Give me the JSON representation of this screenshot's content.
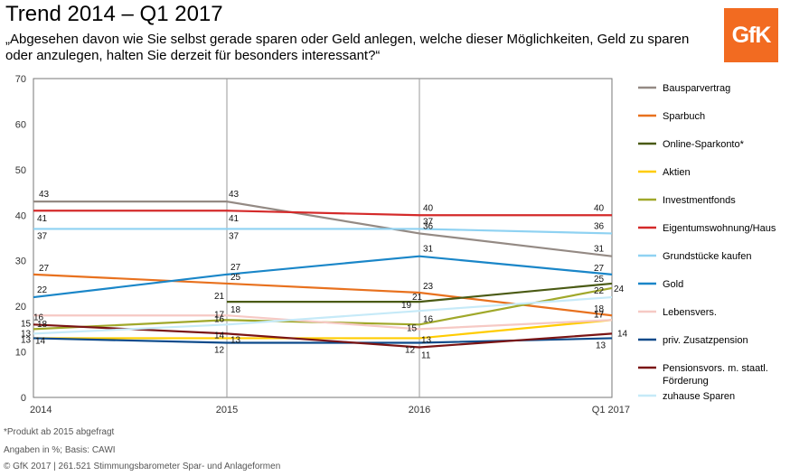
{
  "header": {
    "title": "Trend 2014 – Q1 2017",
    "subtitle": "„Abgesehen davon wie Sie selbst gerade sparen oder Geld anlegen, welche dieser Möglichkeiten, Geld zu sparen oder anzulegen, halten Sie derzeit für besonders interessant?“",
    "logo_text": "GfK"
  },
  "footer": {
    "footnote": "*Produkt ab 2015 abgefragt",
    "source": "Angaben in %; Basis: CAWI",
    "copyright": "© GfK 2017 | 261.521 Stimmungsbarometer Spar- und Anlageformen"
  },
  "chart_data": {
    "type": "line",
    "categories": [
      "2014",
      "2015",
      "2016",
      "Q1 2017"
    ],
    "ylim": [
      0,
      70
    ],
    "yticks": [
      0,
      10,
      20,
      30,
      40,
      50,
      60,
      70
    ],
    "grid": "vertical lines at category positions",
    "legend_position": "right",
    "series": [
      {
        "name": "Bausparvertrag",
        "color": "#948a84",
        "values": [
          43,
          43,
          36,
          31
        ],
        "labels": [
          "43",
          "43",
          "36",
          "31"
        ]
      },
      {
        "name": "Sparbuch",
        "color": "#e8711e",
        "values": [
          27,
          25,
          23,
          18
        ],
        "labels": [
          "27",
          "25",
          "23",
          "18"
        ]
      },
      {
        "name": "Online-Sparkonto*",
        "color": "#4a5a14",
        "values": [
          null,
          21,
          21,
          25
        ],
        "labels": [
          null,
          "21",
          "21",
          "25"
        ]
      },
      {
        "name": "Aktien",
        "color": "#ffcc00",
        "values": [
          13,
          13,
          13,
          17
        ],
        "labels": [
          "13",
          "13",
          "13",
          "17"
        ]
      },
      {
        "name": "Investmentfonds",
        "color": "#a0a82a",
        "values": [
          15,
          17,
          16,
          24
        ],
        "labels": [
          "15",
          "17",
          "16",
          "24"
        ]
      },
      {
        "name": "Eigentumswohnung/Haus",
        "color": "#d42a2a",
        "values": [
          41,
          41,
          40,
          40
        ],
        "labels": [
          "41",
          "41",
          "40",
          "40"
        ]
      },
      {
        "name": "Grundstücke kaufen",
        "color": "#8fd2f2",
        "values": [
          37,
          37,
          37,
          36
        ],
        "labels": [
          "37",
          "37",
          "37",
          "36"
        ]
      },
      {
        "name": "Gold",
        "color": "#1a86c8",
        "values": [
          22,
          27,
          31,
          27
        ],
        "labels": [
          "22",
          "27",
          "31",
          "27"
        ]
      },
      {
        "name": "Lebensvers.",
        "color": "#f6c9c4",
        "values": [
          18,
          18,
          15,
          17
        ],
        "labels": [
          "18",
          "18",
          "15",
          "17"
        ]
      },
      {
        "name": "priv. Zusatzpension",
        "color": "#0d4a8a",
        "values": [
          13,
          12,
          12,
          13
        ],
        "labels": [
          "13",
          "12",
          "12",
          "13"
        ]
      },
      {
        "name": "Pensionsvors. m. staatl. Förderung",
        "color": "#7a1414",
        "values": [
          16,
          14,
          11,
          14
        ],
        "labels": [
          "16",
          "14",
          "11",
          "14"
        ]
      },
      {
        "name": "zuhause Sparen",
        "color": "#c6eaf8",
        "values": [
          14,
          16,
          19,
          22
        ],
        "labels": [
          "14",
          "16",
          "19",
          "22"
        ]
      }
    ]
  }
}
